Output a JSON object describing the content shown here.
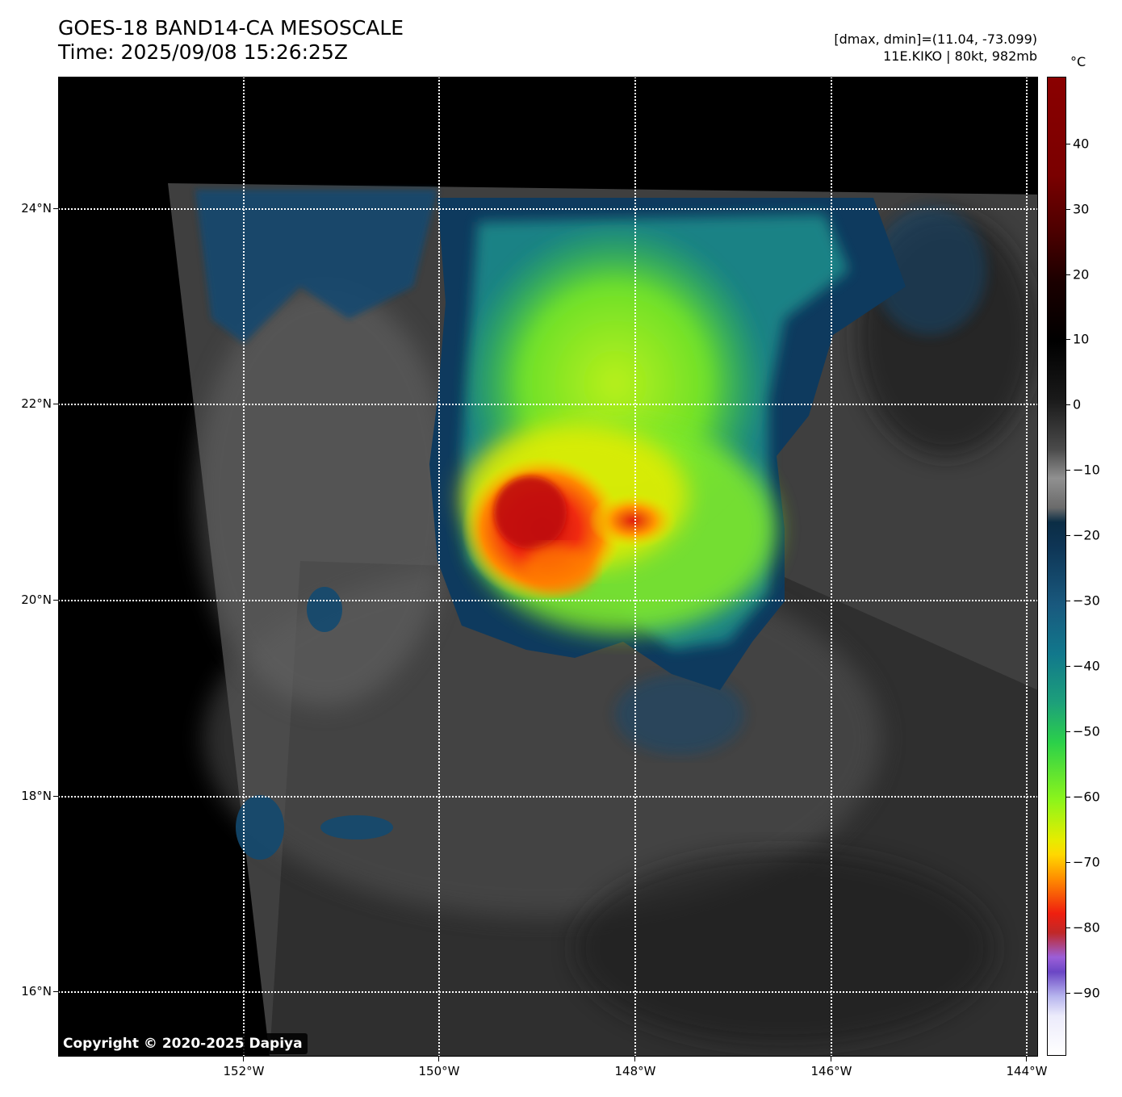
{
  "title": {
    "line1": "GOES-18 BAND14-CA MESOSCALE",
    "line2": "Time: 2025/09/08 15:26:25Z"
  },
  "info": {
    "line1": "[dmax, dmin]=(11.04, -73.099)",
    "line2": "11E.KIKO | 80kt, 982mb"
  },
  "colorbar": {
    "unit": "°C",
    "ticks": [
      "40",
      "30",
      "20",
      "10",
      "0",
      "−10",
      "−20",
      "−30",
      "−40",
      "−50",
      "−60",
      "−70",
      "−80",
      "−90"
    ]
  },
  "axes": {
    "lat_labels": [
      "24°N",
      "22°N",
      "20°N",
      "18°N",
      "16°N"
    ],
    "lon_labels": [
      "152°W",
      "150°W",
      "148°W",
      "146°W",
      "144°W"
    ]
  },
  "copyright": "Copyright © 2020-2025 Dapiya",
  "colors": {
    "background": "#000000",
    "cloud_gray": "#5a5a5a",
    "cold_blue": "#0e3555",
    "green": "#7ee82a",
    "yellow": "#e6ec00",
    "red": "#d91414"
  }
}
